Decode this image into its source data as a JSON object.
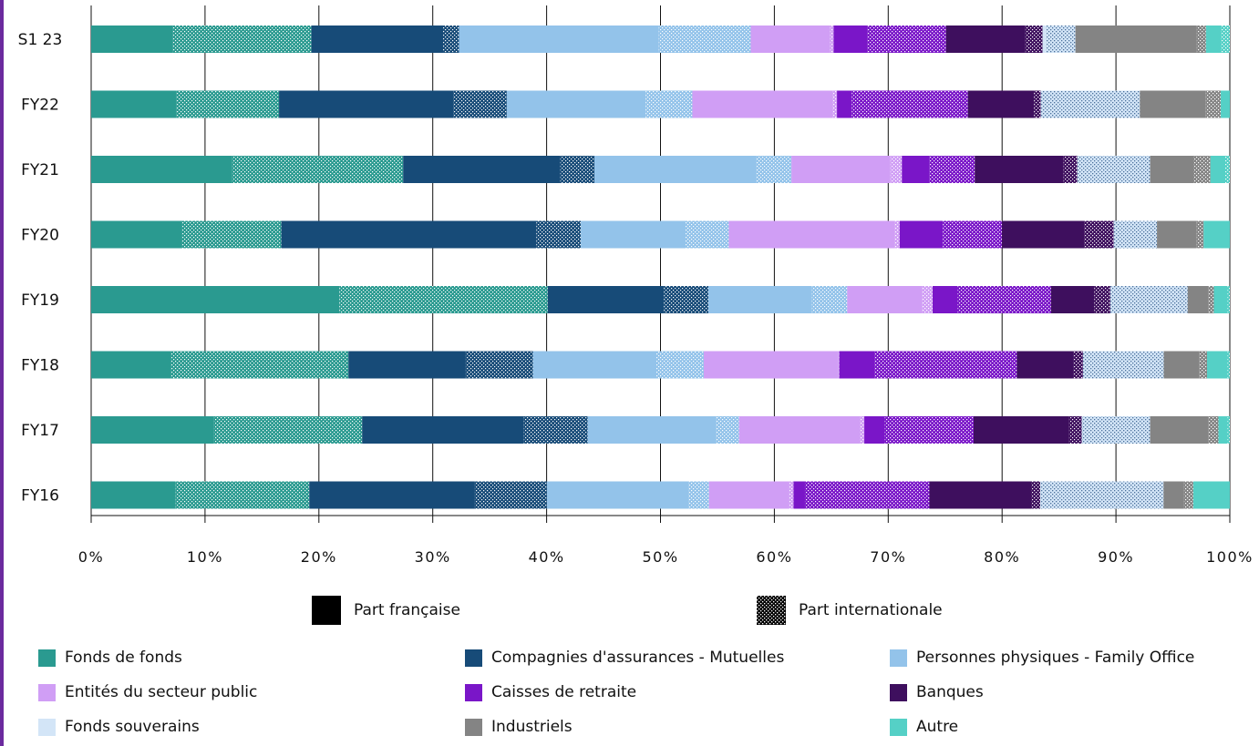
{
  "chart_data": {
    "type": "bar",
    "orientation": "horizontal",
    "stacked": "100%",
    "categories": [
      "S1 23",
      "FY22",
      "FY21",
      "FY20",
      "FY19",
      "FY18",
      "FY17",
      "FY16"
    ],
    "x_ticks": [
      "0%",
      "10%",
      "20%",
      "30%",
      "40%",
      "50%",
      "60%",
      "70%",
      "80%",
      "90%",
      "100%"
    ],
    "xlim": [
      0,
      100
    ],
    "grid": "vertical",
    "colors": {
      "Fonds de fonds": "#2a9a90",
      "Compagnies d'assurances - Mutuelles": "#174b78",
      "Personnes physiques - Family Office": "#93c3ea",
      "Entités du secteur public": "#d09ef5",
      "Caisses de retraite": "#7a16c8",
      "Banques": "#3e0f5e",
      "Fonds souverains": "#d3e5f7",
      "Industriels": "#848484",
      "Autre": "#55d0c6"
    },
    "pattern_legend": {
      "french": "Part française",
      "international": "Part internationale"
    },
    "segments": {
      "S1 23": [
        [
          "Fonds de fonds",
          "fr",
          7.2
        ],
        [
          "Fonds de fonds",
          "int",
          12.2
        ],
        [
          "Compagnies d'assurances - Mutuelles",
          "fr",
          11.6
        ],
        [
          "Compagnies d'assurances - Mutuelles",
          "int",
          1.4
        ],
        [
          "Personnes physiques - Family Office",
          "fr",
          17.6
        ],
        [
          "Personnes physiques - Family Office",
          "int",
          8.1
        ],
        [
          "Entités du secteur public",
          "fr",
          7.0
        ],
        [
          "Entités du secteur public",
          "int",
          0.3
        ],
        [
          "Caisses de retraite",
          "fr",
          3.0
        ],
        [
          "Caisses de retraite",
          "int",
          6.9
        ],
        [
          "Banques",
          "fr",
          7.0
        ],
        [
          "Banques",
          "int",
          1.5
        ],
        [
          "Fonds souverains",
          "fr",
          0.3
        ],
        [
          "Fonds souverains",
          "int",
          2.6
        ],
        [
          "Industriels",
          "fr",
          10.7
        ],
        [
          "Industriels",
          "int",
          0.8
        ],
        [
          "Autre",
          "fr",
          1.3
        ],
        [
          "Autre",
          "int",
          0.8
        ]
      ],
      "FY22": [
        [
          "Fonds de fonds",
          "fr",
          7.5
        ],
        [
          "Fonds de fonds",
          "int",
          9.0
        ],
        [
          "Compagnies d'assurances - Mutuelles",
          "fr",
          15.3
        ],
        [
          "Compagnies d'assurances - Mutuelles",
          "int",
          4.7
        ],
        [
          "Personnes physiques - Family Office",
          "fr",
          12.2
        ],
        [
          "Personnes physiques - Family Office",
          "int",
          4.1
        ],
        [
          "Entités du secteur public",
          "fr",
          12.3
        ],
        [
          "Entités du secteur public",
          "int",
          0.4
        ],
        [
          "Caisses de retraite",
          "fr",
          1.3
        ],
        [
          "Caisses de retraite",
          "int",
          10.2
        ],
        [
          "Banques",
          "fr",
          5.8
        ],
        [
          "Banques",
          "int",
          0.6
        ],
        [
          "Fonds souverains",
          "fr",
          0.0
        ],
        [
          "Fonds souverains",
          "int",
          8.7
        ],
        [
          "Industriels",
          "fr",
          5.8
        ],
        [
          "Industriels",
          "int",
          1.3
        ],
        [
          "Autre",
          "fr",
          0.8
        ],
        [
          "Autre",
          "int",
          0.0
        ]
      ],
      "FY21": [
        [
          "Fonds de fonds",
          "fr",
          12.4
        ],
        [
          "Fonds de fonds",
          "int",
          15.0
        ],
        [
          "Compagnies d'assurances - Mutuelles",
          "fr",
          13.8
        ],
        [
          "Compagnies d'assurances - Mutuelles",
          "int",
          3.0
        ],
        [
          "Personnes physiques - Family Office",
          "fr",
          14.2
        ],
        [
          "Personnes physiques - Family Office",
          "int",
          3.1
        ],
        [
          "Entités du secteur public",
          "fr",
          8.7
        ],
        [
          "Entités du secteur public",
          "int",
          1.0
        ],
        [
          "Caisses de retraite",
          "fr",
          2.4
        ],
        [
          "Caisses de retraite",
          "int",
          4.0
        ],
        [
          "Banques",
          "fr",
          7.8
        ],
        [
          "Banques",
          "int",
          1.2
        ],
        [
          "Fonds souverains",
          "fr",
          0.0
        ],
        [
          "Fonds souverains",
          "int",
          6.4
        ],
        [
          "Industriels",
          "fr",
          3.8
        ],
        [
          "Industriels",
          "int",
          1.5
        ],
        [
          "Autre",
          "fr",
          1.3
        ],
        [
          "Autre",
          "int",
          0.4
        ]
      ],
      "FY20": [
        [
          "Fonds de fonds",
          "fr",
          8.0
        ],
        [
          "Fonds de fonds",
          "int",
          8.7
        ],
        [
          "Compagnies d'assurances - Mutuelles",
          "fr",
          22.4
        ],
        [
          "Compagnies d'assurances - Mutuelles",
          "int",
          3.9
        ],
        [
          "Personnes physiques - Family Office",
          "fr",
          9.2
        ],
        [
          "Personnes physiques - Family Office",
          "int",
          3.8
        ],
        [
          "Entités du secteur public",
          "fr",
          14.6
        ],
        [
          "Entités du secteur public",
          "int",
          0.4
        ],
        [
          "Caisses de retraite",
          "fr",
          3.8
        ],
        [
          "Caisses de retraite",
          "int",
          5.2
        ],
        [
          "Banques",
          "fr",
          7.2
        ],
        [
          "Banques",
          "int",
          2.6
        ],
        [
          "Fonds souverains",
          "fr",
          0.0
        ],
        [
          "Fonds souverains",
          "int",
          3.8
        ],
        [
          "Industriels",
          "fr",
          3.5
        ],
        [
          "Industriels",
          "int",
          0.6
        ],
        [
          "Autre",
          "fr",
          2.3
        ],
        [
          "Autre",
          "int",
          0.0
        ]
      ],
      "FY19": [
        [
          "Fonds de fonds",
          "fr",
          21.8
        ],
        [
          "Fonds de fonds",
          "int",
          18.3
        ],
        [
          "Compagnies d'assurances - Mutuelles",
          "fr",
          10.2
        ],
        [
          "Compagnies d'assurances - Mutuelles",
          "int",
          3.9
        ],
        [
          "Personnes physiques - Family Office",
          "fr",
          9.1
        ],
        [
          "Personnes physiques - Family Office",
          "int",
          3.1
        ],
        [
          "Entités du secteur public",
          "fr",
          6.6
        ],
        [
          "Entités du secteur public",
          "int",
          0.9
        ],
        [
          "Caisses de retraite",
          "fr",
          2.2
        ],
        [
          "Caisses de retraite",
          "int",
          8.2
        ],
        [
          "Banques",
          "fr",
          3.8
        ],
        [
          "Banques",
          "int",
          1.4
        ],
        [
          "Fonds souverains",
          "fr",
          0.0
        ],
        [
          "Fonds souverains",
          "int",
          6.8
        ],
        [
          "Industriels",
          "fr",
          1.8
        ],
        [
          "Industriels",
          "int",
          0.5
        ],
        [
          "Autre",
          "fr",
          1.2
        ],
        [
          "Autre",
          "int",
          0.2
        ]
      ],
      "FY18": [
        [
          "Fonds de fonds",
          "fr",
          7.0
        ],
        [
          "Fonds de fonds",
          "int",
          15.6
        ],
        [
          "Compagnies d'assurances - Mutuelles",
          "fr",
          10.3
        ],
        [
          "Compagnies d'assurances - Mutuelles",
          "int",
          5.9
        ],
        [
          "Personnes physiques - Family Office",
          "fr",
          10.8
        ],
        [
          "Personnes physiques - Family Office",
          "int",
          4.2
        ],
        [
          "Entités du secteur public",
          "fr",
          11.8
        ],
        [
          "Entités du secteur public",
          "int",
          0.1
        ],
        [
          "Caisses de retraite",
          "fr",
          3.1
        ],
        [
          "Caisses de retraite",
          "int",
          12.5
        ],
        [
          "Banques",
          "fr",
          5.0
        ],
        [
          "Banques",
          "int",
          0.8
        ],
        [
          "Fonds souverains",
          "fr",
          0.0
        ],
        [
          "Fonds souverains",
          "int",
          7.1
        ],
        [
          "Industriels",
          "fr",
          3.1
        ],
        [
          "Industriels",
          "int",
          0.7
        ],
        [
          "Autre",
          "fr",
          1.8
        ],
        [
          "Autre",
          "int",
          0.2
        ]
      ],
      "FY17": [
        [
          "Fonds de fonds",
          "fr",
          10.8
        ],
        [
          "Fonds de fonds",
          "int",
          13.0
        ],
        [
          "Compagnies d'assurances - Mutuelles",
          "fr",
          14.2
        ],
        [
          "Compagnies d'assurances - Mutuelles",
          "int",
          5.6
        ],
        [
          "Personnes physiques - Family Office",
          "fr",
          11.3
        ],
        [
          "Personnes physiques - Family Office",
          "int",
          2.0
        ],
        [
          "Entités du secteur public",
          "fr",
          10.6
        ],
        [
          "Entités du secteur public",
          "int",
          0.4
        ],
        [
          "Caisses de retraite",
          "fr",
          1.8
        ],
        [
          "Caisses de retraite",
          "int",
          7.8
        ],
        [
          "Banques",
          "fr",
          8.4
        ],
        [
          "Banques",
          "int",
          1.1
        ],
        [
          "Fonds souverains",
          "fr",
          0.0
        ],
        [
          "Fonds souverains",
          "int",
          6.0
        ],
        [
          "Industriels",
          "fr",
          5.1
        ],
        [
          "Industriels",
          "int",
          0.9
        ],
        [
          "Autre",
          "fr",
          0.8
        ],
        [
          "Autre",
          "int",
          0.2
        ]
      ],
      "FY16": [
        [
          "Fonds de fonds",
          "fr",
          7.4
        ],
        [
          "Fonds de fonds",
          "int",
          11.7
        ],
        [
          "Compagnies d'assurances - Mutuelles",
          "fr",
          14.5
        ],
        [
          "Compagnies d'assurances - Mutuelles",
          "int",
          6.3
        ],
        [
          "Personnes physiques - Family Office",
          "fr",
          12.4
        ],
        [
          "Personnes physiques - Family Office",
          "int",
          1.8
        ],
        [
          "Entités du secteur public",
          "fr",
          7.0
        ],
        [
          "Entités du secteur public",
          "int",
          0.4
        ],
        [
          "Caisses de retraite",
          "fr",
          1.0
        ],
        [
          "Caisses de retraite",
          "int",
          10.9
        ],
        [
          "Banques",
          "fr",
          8.9
        ],
        [
          "Banques",
          "int",
          0.8
        ],
        [
          "Fonds souverains",
          "fr",
          0.0
        ],
        [
          "Fonds souverains",
          "int",
          10.8
        ],
        [
          "Industriels",
          "fr",
          1.8
        ],
        [
          "Industriels",
          "int",
          0.8
        ],
        [
          "Autre",
          "fr",
          3.2
        ],
        [
          "Autre",
          "int",
          0.0
        ]
      ]
    }
  },
  "legend": {
    "part_francaise": "Part française",
    "part_internationale": "Part internationale",
    "items": [
      "Fonds de fonds",
      "Compagnies d'assurances - Mutuelles",
      "Personnes physiques - Family Office",
      "Entités du secteur public",
      "Caisses de retraite",
      "Banques",
      "Fonds souverains",
      "Industriels",
      "Autre"
    ]
  }
}
